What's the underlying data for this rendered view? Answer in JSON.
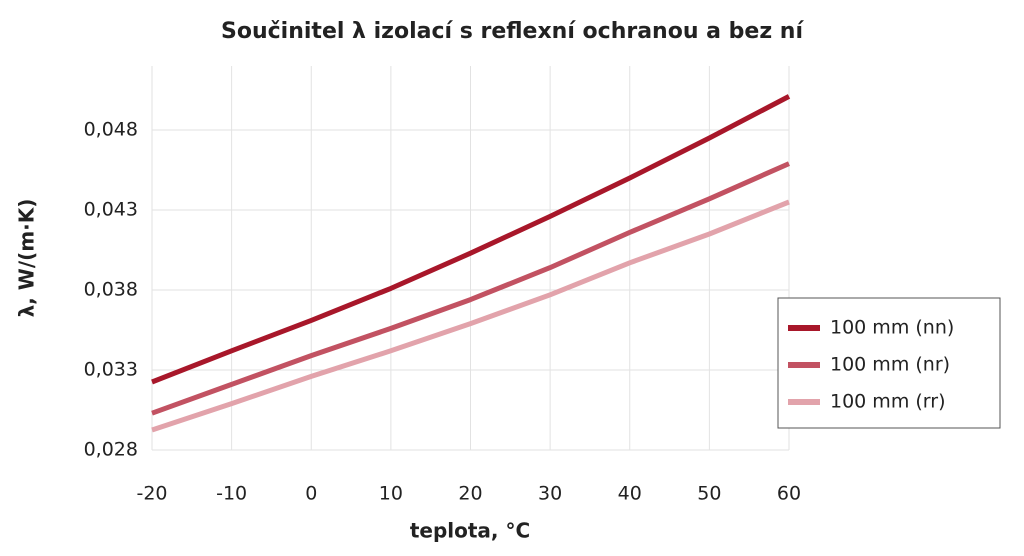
{
  "chart_data": {
    "type": "line",
    "title": "Součinitel λ izolací s reflexní ochranou a bez ní",
    "x_label": "teplota, °C",
    "y_label": "λ, W/(m·K)",
    "x": [
      -20,
      -10,
      0,
      10,
      20,
      30,
      40,
      50,
      60
    ],
    "series": [
      {
        "name": "100 mm (nn)",
        "color": "#a8172a",
        "values": [
          0.03225,
          0.0342,
          0.0361,
          0.0381,
          0.0403,
          0.0426,
          0.045,
          0.0475,
          0.0501
        ]
      },
      {
        "name": "100 mm (nr)",
        "color": "#c25262",
        "values": [
          0.0303,
          0.0321,
          0.0339,
          0.0356,
          0.0374,
          0.0394,
          0.0416,
          0.0437,
          0.0459
        ]
      },
      {
        "name": "100 mm (rr)",
        "color": "#e2a3ab",
        "values": [
          0.02925,
          0.0309,
          0.0326,
          0.0342,
          0.0359,
          0.0377,
          0.0397,
          0.0415,
          0.0435
        ]
      }
    ],
    "xlim": [
      -20,
      60
    ],
    "xticks": [
      -20,
      -10,
      0,
      10,
      20,
      30,
      40,
      50,
      60
    ],
    "ylim": [
      0.028,
      0.052
    ],
    "yticks": [
      {
        "value": 0.028,
        "label": "0,028"
      },
      {
        "value": 0.033,
        "label": "0,033"
      },
      {
        "value": 0.038,
        "label": "0,038"
      },
      {
        "value": 0.043,
        "label": "0,043"
      },
      {
        "value": 0.048,
        "label": "0,048"
      }
    ],
    "grid": true,
    "legend": "right"
  }
}
